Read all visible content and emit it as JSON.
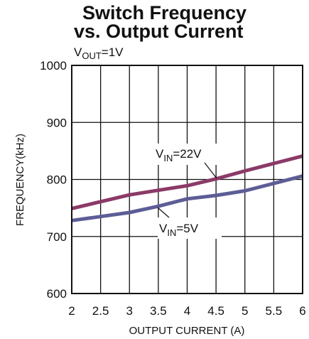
{
  "chart_data": {
    "type": "line",
    "title": [
      "Switch Frequency",
      "vs. Output Current"
    ],
    "subtitle": {
      "main": "V",
      "sub": "OUT",
      "tail": "=1V"
    },
    "xlabel": "OUTPUT CURRENT (A)",
    "ylabel": "FREQUENCY(kHz)",
    "xlim": [
      2,
      6
    ],
    "ylim": [
      600,
      1000
    ],
    "x_ticks": [
      "2",
      "2.5",
      "3",
      "3.5",
      "4",
      "4.5",
      "5",
      "5.5",
      "6"
    ],
    "y_ticks": [
      "600",
      "700",
      "800",
      "900",
      "1000"
    ],
    "grid": true,
    "series": [
      {
        "name": {
          "main": "V",
          "sub": "IN",
          "tail": "=22V"
        },
        "color": "#8b3a68",
        "points": [
          [
            2,
            749
          ],
          [
            2.5,
            761
          ],
          [
            3,
            773
          ],
          [
            3.5,
            781
          ],
          [
            4,
            789
          ],
          [
            4.5,
            801
          ],
          [
            5,
            815
          ],
          [
            5.5,
            828
          ],
          [
            6,
            841
          ]
        ]
      },
      {
        "name": {
          "main": "V",
          "sub": "IN",
          "tail": "=5V"
        },
        "color": "#5d5d96",
        "points": [
          [
            2,
            728
          ],
          [
            2.5,
            735
          ],
          [
            3,
            742
          ],
          [
            3.5,
            753
          ],
          [
            4,
            766
          ],
          [
            4.5,
            772
          ],
          [
            5,
            780
          ],
          [
            5.5,
            793
          ],
          [
            6,
            806
          ]
        ]
      }
    ]
  }
}
